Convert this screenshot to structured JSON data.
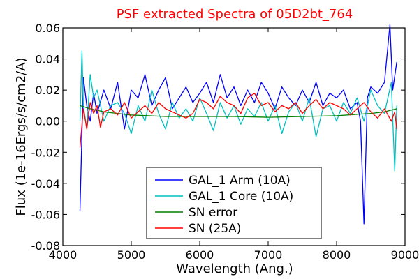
{
  "chart_data": {
    "type": "line",
    "title": "PSF extracted Spectra of 05D2bt_764",
    "title_color": "#ff0000",
    "xlabel": "Wavelength (Ang.)",
    "ylabel": "Flux (1e-16Ergs/s/cm2/A)",
    "xlim": [
      4000,
      9000
    ],
    "ylim": [
      -0.08,
      0.06
    ],
    "xticks": [
      4000,
      5000,
      6000,
      7000,
      8000,
      9000
    ],
    "xtick_labels": [
      "4000",
      "5000",
      "6000",
      "7000",
      "8000",
      "9000"
    ],
    "yticks": [
      -0.08,
      -0.06,
      -0.04,
      -0.02,
      0.0,
      0.02,
      0.04,
      0.06
    ],
    "ytick_labels": [
      "-0.08",
      "-0.06",
      "-0.04",
      "-0.02",
      "0.00",
      "0.02",
      "0.04",
      "0.06"
    ],
    "grid": false,
    "legend_position": "lower-center",
    "series": [
      {
        "name": "GAL_1 Arm (10A)",
        "color": "#0000ff",
        "x": [
          4250,
          4300,
          4350,
          4400,
          4450,
          4500,
          4600,
          4700,
          4800,
          4900,
          5000,
          5100,
          5200,
          5300,
          5400,
          5500,
          5600,
          5700,
          5800,
          5900,
          6000,
          6100,
          6200,
          6300,
          6400,
          6500,
          6600,
          6700,
          6800,
          6900,
          7000,
          7100,
          7200,
          7300,
          7400,
          7500,
          7600,
          7700,
          7800,
          7900,
          8000,
          8100,
          8200,
          8300,
          8350,
          8400,
          8450,
          8500,
          8600,
          8700,
          8780,
          8820,
          8880
        ],
        "y": [
          -0.058,
          0.028,
          0.01,
          0.0,
          0.018,
          0.005,
          0.02,
          0.008,
          0.025,
          -0.005,
          0.02,
          0.015,
          0.03,
          0.01,
          0.02,
          0.028,
          0.008,
          0.015,
          0.022,
          0.012,
          0.018,
          0.025,
          0.012,
          0.03,
          0.015,
          0.022,
          0.01,
          0.02,
          0.012,
          0.025,
          0.018,
          0.008,
          0.022,
          0.015,
          0.01,
          0.02,
          0.012,
          0.025,
          0.01,
          0.018,
          0.015,
          0.02,
          0.008,
          0.012,
          0.0,
          -0.066,
          0.015,
          0.022,
          0.018,
          0.025,
          0.062,
          0.02,
          0.038
        ]
      },
      {
        "name": "GAL_1 Core (10A)",
        "color": "#00bfbf",
        "x": [
          4250,
          4280,
          4300,
          4350,
          4400,
          4450,
          4500,
          4600,
          4700,
          4800,
          4900,
          5000,
          5100,
          5200,
          5300,
          5400,
          5500,
          5600,
          5700,
          5800,
          5900,
          6000,
          6100,
          6200,
          6300,
          6400,
          6500,
          6600,
          6700,
          6800,
          6900,
          7000,
          7100,
          7200,
          7300,
          7400,
          7500,
          7600,
          7700,
          7800,
          7900,
          8000,
          8100,
          8200,
          8300,
          8400,
          8500,
          8600,
          8700,
          8800,
          8850,
          8880
        ],
        "y": [
          0.0,
          0.045,
          0.01,
          -0.005,
          0.03,
          0.015,
          0.02,
          0.0,
          0.01,
          0.012,
          0.005,
          -0.008,
          0.01,
          0.0,
          0.02,
          0.005,
          -0.005,
          0.012,
          0.002,
          0.008,
          0.0,
          0.015,
          0.005,
          -0.006,
          0.012,
          0.002,
          0.01,
          -0.002,
          0.008,
          0.003,
          0.012,
          0.0,
          0.01,
          -0.008,
          0.006,
          0.012,
          0.0,
          0.015,
          -0.01,
          0.008,
          0.01,
          0.0,
          0.012,
          0.005,
          0.015,
          0.0,
          0.02,
          0.01,
          0.005,
          0.025,
          -0.032,
          0.01
        ]
      },
      {
        "name": "SN error",
        "color": "#008000",
        "x": [
          4250,
          4400,
          4600,
          4800,
          5000,
          5500,
          6000,
          6500,
          7000,
          7500,
          8000,
          8500,
          8700,
          8880
        ],
        "y": [
          0.01,
          0.008,
          0.006,
          0.005,
          0.004,
          0.003,
          0.003,
          0.003,
          0.0025,
          0.003,
          0.0035,
          0.005,
          0.006,
          0.008
        ]
      },
      {
        "name": "SN (25A)",
        "color": "#ff0000",
        "x": [
          4250,
          4300,
          4350,
          4400,
          4450,
          4500,
          4550,
          4600,
          4700,
          4800,
          4900,
          5000,
          5100,
          5200,
          5300,
          5400,
          5500,
          5600,
          5700,
          5800,
          5900,
          6000,
          6100,
          6200,
          6300,
          6400,
          6500,
          6600,
          6700,
          6800,
          6900,
          7000,
          7100,
          7200,
          7300,
          7400,
          7500,
          7600,
          7700,
          7800,
          7900,
          8000,
          8100,
          8200,
          8300,
          8400,
          8500,
          8600,
          8700,
          8800,
          8850,
          8880
        ],
        "y": [
          -0.017,
          0.008,
          -0.005,
          0.012,
          0.005,
          0.01,
          -0.004,
          0.006,
          0.008,
          0.004,
          0.012,
          0.002,
          0.006,
          0.01,
          0.005,
          0.012,
          0.008,
          0.006,
          0.004,
          0.002,
          0.005,
          0.014,
          0.012,
          0.008,
          0.016,
          0.012,
          0.01,
          0.005,
          0.015,
          0.018,
          0.01,
          0.012,
          0.006,
          0.01,
          0.008,
          0.012,
          0.005,
          0.01,
          0.014,
          0.008,
          0.012,
          0.01,
          0.008,
          0.004,
          0.008,
          0.012,
          0.006,
          0.002,
          0.008,
          0.0,
          0.006,
          -0.005
        ]
      }
    ]
  }
}
